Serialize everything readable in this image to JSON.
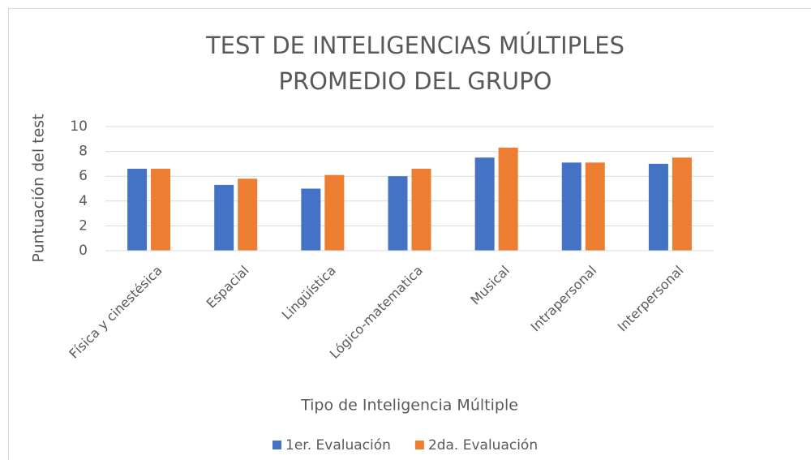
{
  "chart_data": {
    "type": "bar",
    "title": [
      "TEST DE INTELIGENCIAS MÚLTIPLES",
      "PROMEDIO DEL GRUPO"
    ],
    "x_label": "Tipo de Inteligencia Múltiple",
    "y_label": "Puntuación del test",
    "categories": [
      "Física y cinestésica",
      "Espacial",
      "Lingüística",
      "Lógico-matematica",
      "Musical",
      "Intrapersonal",
      "Interpersonal"
    ],
    "series": [
      {
        "name": "1er. Evaluación",
        "color": "#4472c4",
        "values": [
          6.6,
          5.3,
          5.0,
          6.0,
          7.5,
          7.1,
          7.0
        ]
      },
      {
        "name": "2da. Evaluación",
        "color": "#ed7d31",
        "values": [
          6.6,
          5.8,
          6.1,
          6.6,
          8.3,
          7.1,
          7.5
        ]
      }
    ],
    "ylim": [
      0,
      10
    ],
    "yticks": [
      0,
      2,
      4,
      6,
      8,
      10
    ],
    "grid": true,
    "legend": "bottom"
  }
}
